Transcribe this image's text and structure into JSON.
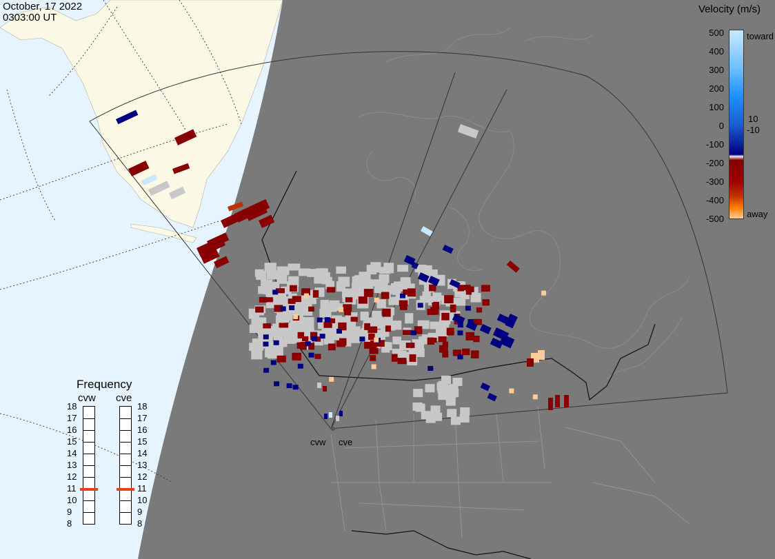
{
  "header": {
    "date": "October, 17 2022",
    "time": "0303:00 UT"
  },
  "velocity_legend": {
    "title": "Velocity (m/s)",
    "ticks": [
      "500",
      "400",
      "300",
      "200",
      "100",
      "0",
      "-100",
      "-200",
      "-300",
      "-400",
      "-500"
    ],
    "label_toward": "toward",
    "label_away": "away",
    "label_pos": "10",
    "label_neg": "-10",
    "colors": [
      "#c8e8ff",
      "#6ec0ff",
      "#1e90ff",
      "#1a5fd0",
      "#0b2f9a",
      "#000080",
      "#800000",
      "#a00000",
      "#c03000",
      "#ff7a00",
      "#ffcc99"
    ]
  },
  "radars": {
    "west": "cvw",
    "east": "cve"
  },
  "frequency": {
    "title": "Frequency",
    "column_west": "cvw",
    "column_east": "cve",
    "levels": [
      "18",
      "17",
      "16",
      "15",
      "14",
      "13",
      "12",
      "11",
      "10",
      "9",
      "8"
    ],
    "cvw_mhz": 10.9,
    "cve_mhz": 10.9,
    "marker_color": "#e8401a"
  },
  "colors": {
    "night": "#7a7a7a",
    "ocean_day": "#e6f4ff",
    "land_day": "#fbf8e6",
    "no_data": "#c8c8c8",
    "neg_fast": "#880000",
    "pos_fast": "#000080"
  }
}
